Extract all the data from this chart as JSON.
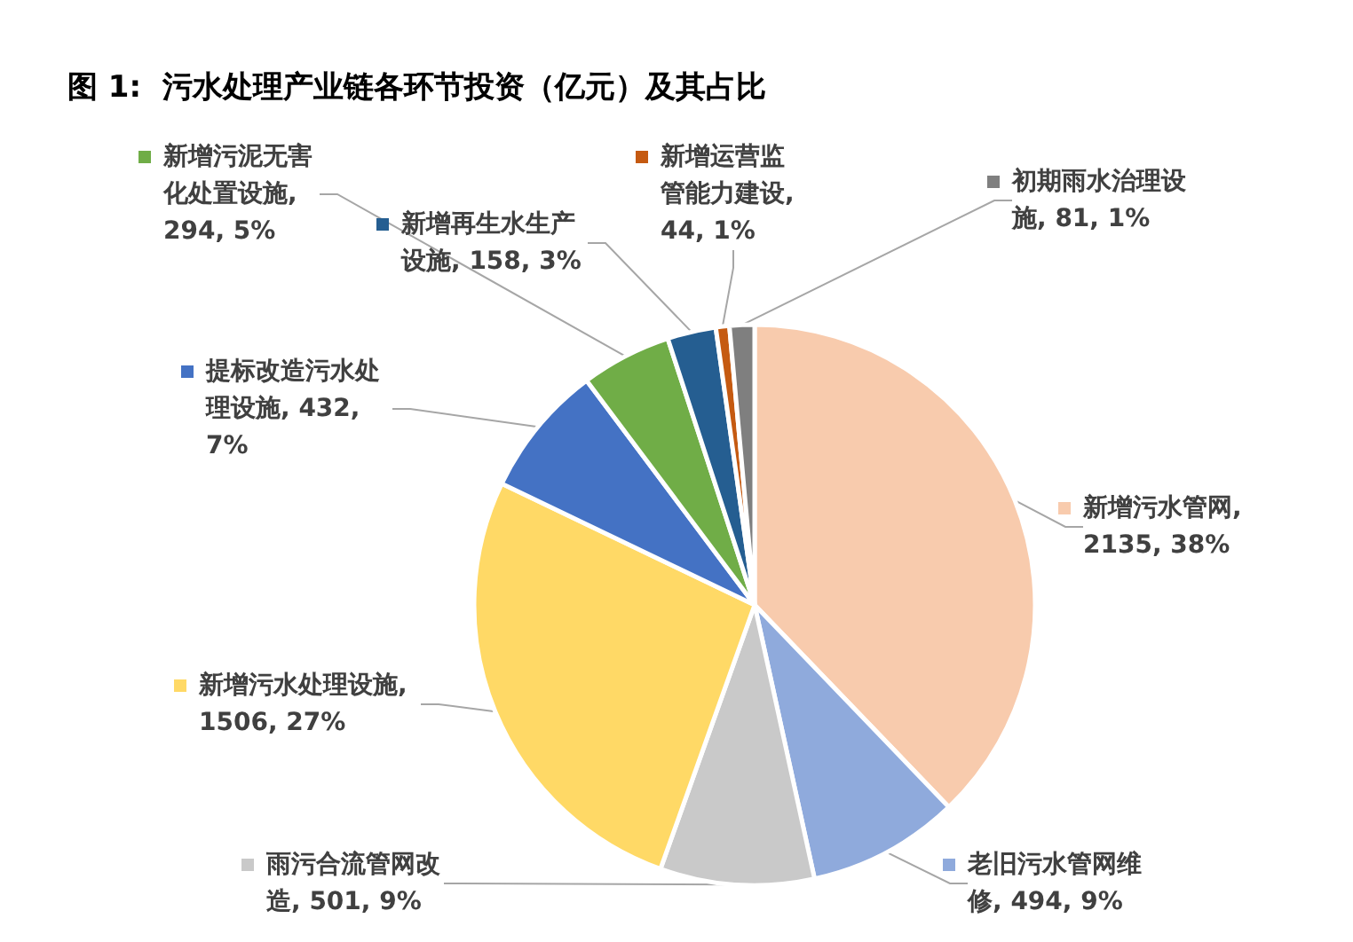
{
  "chart_data": {
    "type": "pie",
    "title": "图 1:  污水处理产业链各环节投资（亿元）及其占比",
    "categories": [
      "新增污水管网, 2135, 38%",
      "老旧污水管网维修, 494, 9%",
      "雨污合流管网改造, 501, 9%",
      "新增污水处理设施, 1506, 27%",
      "提标改造污水处理设施, 432, 7%",
      "新增污泥无害化处置设施, 294, 5%",
      "新增再生水生产设施, 158, 3%",
      "新增运营监管能力建设, 44, 1%",
      "初期雨水治理设施, 81, 1%"
    ],
    "values": [
      2135,
      494,
      501,
      1506,
      432,
      294,
      158,
      44,
      81
    ],
    "colors": [
      "#f8cbad",
      "#8faadc",
      "#c9c9c9",
      "#ffd966",
      "#4472c4",
      "#70ad47",
      "#255e91",
      "#c55a11",
      "#7f7f7f"
    ],
    "legend": "top"
  }
}
